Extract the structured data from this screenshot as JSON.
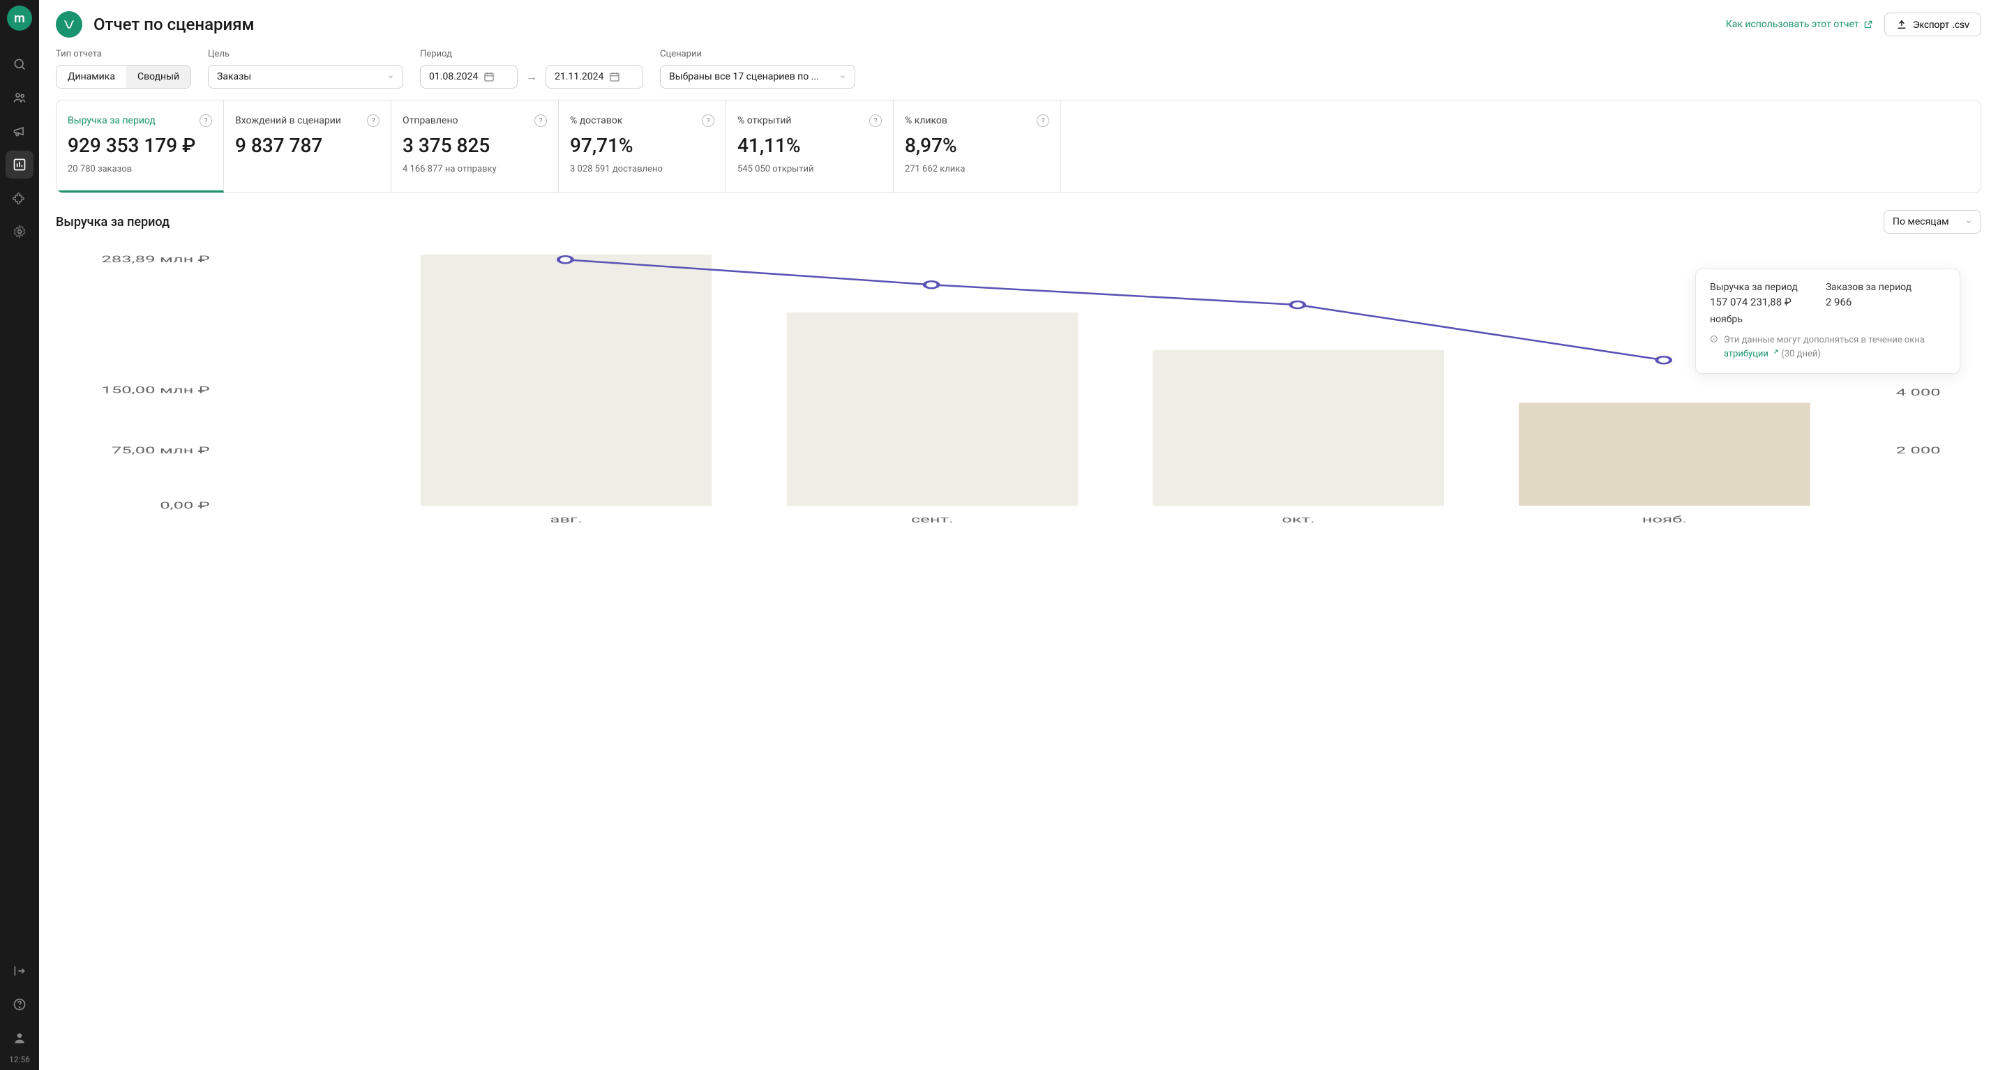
{
  "sidebar": {
    "logo_letter": "m",
    "time": "12:56"
  },
  "header": {
    "title": "Отчет по сценариям",
    "help_link": "Как использовать этот отчет",
    "export_label": "Экспорт .csv"
  },
  "filters": {
    "type_label": "Тип отчета",
    "type_options": [
      "Динамика",
      "Сводный"
    ],
    "goal_label": "Цель",
    "goal_value": "Заказы",
    "period_label": "Период",
    "date_from": "01.08.2024",
    "date_to": "21.11.2024",
    "scenarios_label": "Сценарии",
    "scenarios_value": "Выбраны все 17 сценариев по ..."
  },
  "metrics": [
    {
      "title": "Выручка за период",
      "value": "929 353 179 ₽",
      "sub": "20 780 заказов",
      "active": true
    },
    {
      "title": "Вхождений в сценарии",
      "value": "9 837 787",
      "sub": ""
    },
    {
      "title": "Отправлено",
      "value": "3 375 825",
      "sub": "4 166 877 на отправку"
    },
    {
      "title": "% доставок",
      "value": "97,71%",
      "sub": "3 028 591 доставлено"
    },
    {
      "title": "% открытий",
      "value": "41,11%",
      "sub": "545 050 открытий"
    },
    {
      "title": "% кликов",
      "value": "8,97%",
      "sub": "271 662 клика"
    }
  ],
  "chart": {
    "title": "Выручка за период",
    "granularity": "По месяцам",
    "y_left_ticks": [
      "283,89 млн ₽",
      "150,00 млн ₽",
      "75,00 млн ₽",
      "0,00 ₽"
    ],
    "y_left_positions": [
      0.02,
      0.54,
      0.78,
      1.0
    ],
    "y_right_ticks": [
      "4 000",
      "2 000"
    ],
    "y_right_positions": [
      0.55,
      0.78
    ],
    "x_labels": [
      "авг.",
      "сент.",
      "окт.",
      "нояб."
    ],
    "bars": [
      {
        "x": 0.12,
        "height": 1.0,
        "color": "#eeede6"
      },
      {
        "x": 0.34,
        "height": 0.77,
        "color": "#eeede6"
      },
      {
        "x": 0.56,
        "height": 0.62,
        "color": "#eeede6"
      },
      {
        "x": 0.78,
        "height": 0.41,
        "color": "#e2d9c5"
      }
    ],
    "bar_width": 0.175,
    "line_color": "#5b52b5",
    "line_points": [
      {
        "x": 0.207,
        "y": 0.02
      },
      {
        "x": 0.427,
        "y": 0.12
      },
      {
        "x": 0.647,
        "y": 0.2
      },
      {
        "x": 0.867,
        "y": 0.42
      }
    ],
    "tooltip": {
      "revenue_label": "Выручка за период",
      "revenue_value": "157 074 231,88 ₽",
      "orders_label": "Заказов за период",
      "orders_value": "2 966",
      "month": "ноябрь",
      "note_prefix": "Эти данные могут дополняться в течение окна",
      "note_link": "атрибуции",
      "note_suffix": "(30 дней)"
    }
  }
}
